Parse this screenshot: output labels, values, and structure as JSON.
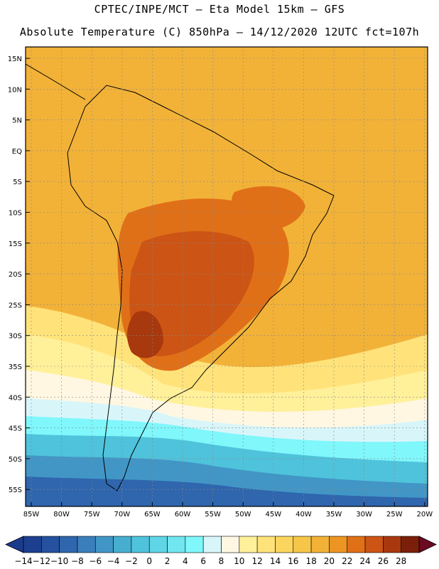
{
  "title": {
    "line1": "CPTEC/INPE/MCT –  Eta Model 15km – GFS",
    "line2": "Absolute Temperature (C) 850hPa – 14/12/2020 12UTC fct=107h"
  },
  "axes": {
    "lat_labels": [
      "15N",
      "10N",
      "5N",
      "EQ",
      "5S",
      "10S",
      "15S",
      "20S",
      "25S",
      "30S",
      "35S",
      "40S",
      "45S",
      "50S",
      "55S"
    ],
    "lon_labels": [
      "85W",
      "80W",
      "75W",
      "70W",
      "65W",
      "60W",
      "55W",
      "50W",
      "45W",
      "40W",
      "35W",
      "30W",
      "25W",
      "20W"
    ]
  },
  "colorbar": {
    "labels": [
      "-14",
      "-12",
      "-10",
      "-8",
      "-6",
      "-4",
      "-2",
      "0",
      "2",
      "4",
      "6",
      "8",
      "10",
      "12",
      "14",
      "16",
      "18",
      "20",
      "22",
      "24",
      "26",
      "28"
    ],
    "colors": [
      "#1c3f8f",
      "#25519e",
      "#2f66ad",
      "#3a7ebc",
      "#4196c6",
      "#47aecf",
      "#4fc3db",
      "#5fd5e6",
      "#6fe6f0",
      "#7ff7fb",
      "#d8f6fa",
      "#fff7e2",
      "#fff09a",
      "#ffe37a",
      "#fcd55e",
      "#f6c649",
      "#f2b238",
      "#ec9523",
      "#e07018",
      "#cc5414",
      "#a8380d",
      "#7b1f0a"
    ],
    "under_color": "#1a3a8c",
    "over_color": "#6b0a20"
  }
}
